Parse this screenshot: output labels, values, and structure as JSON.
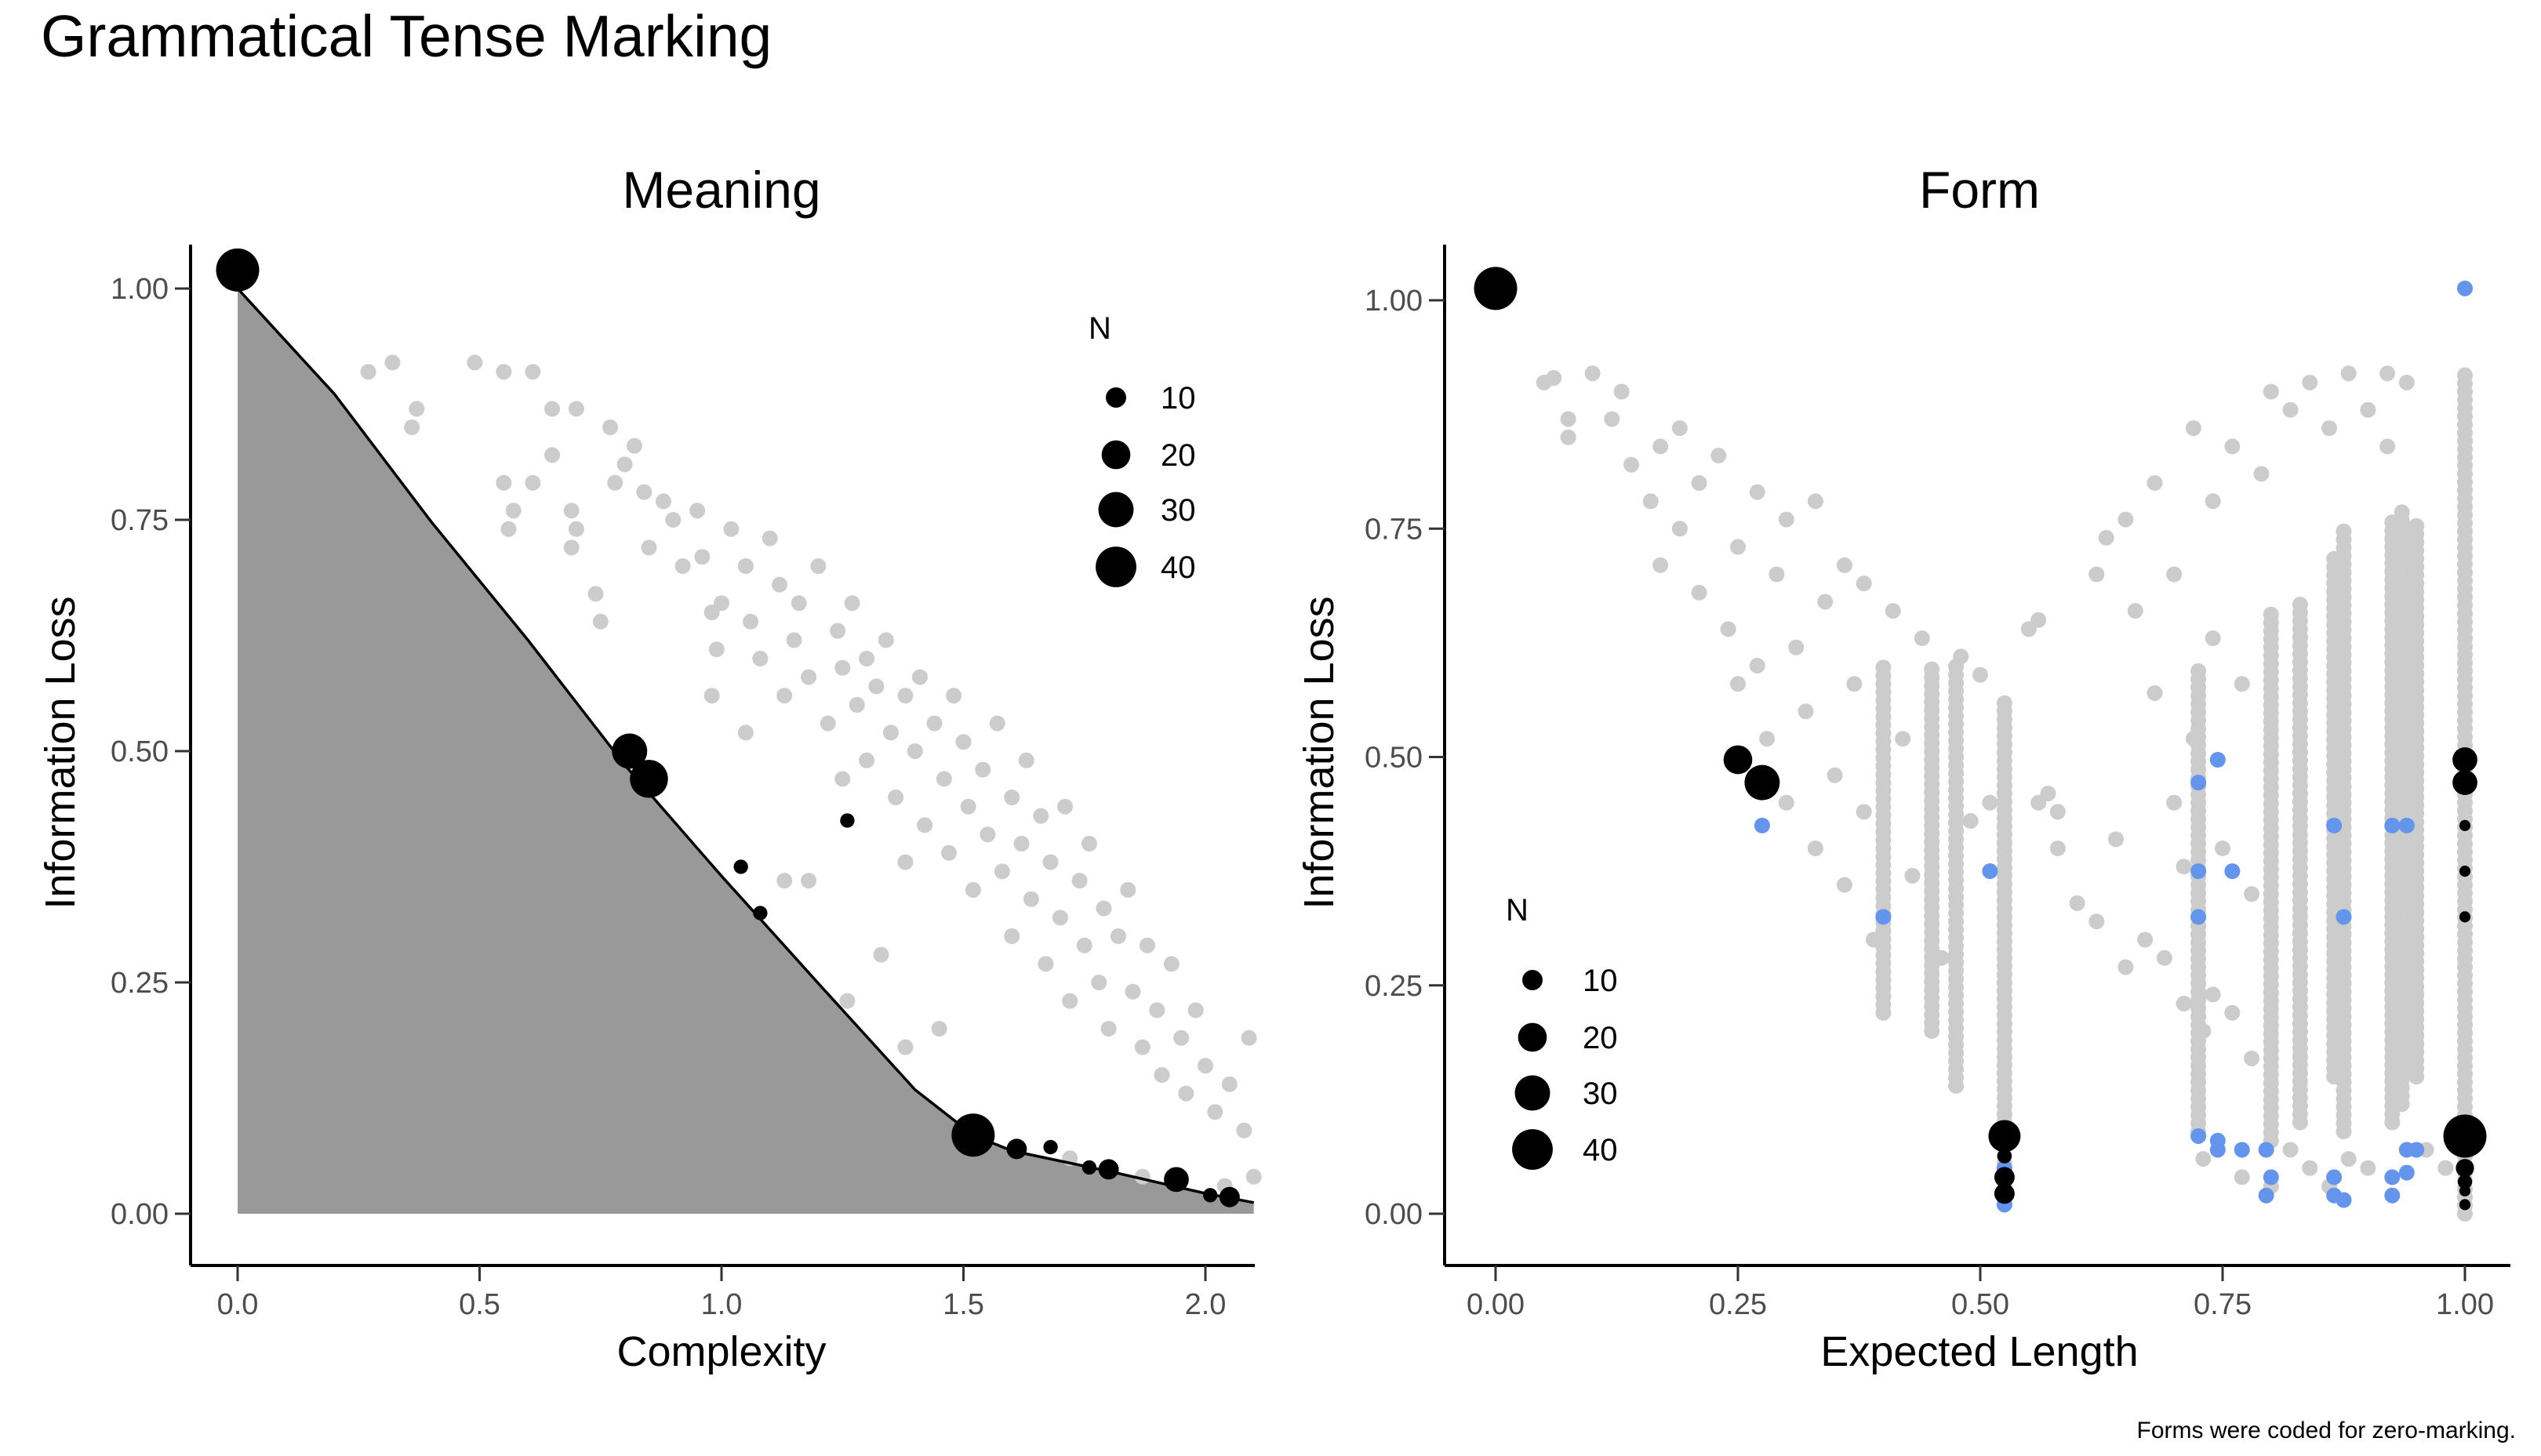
{
  "title": "Grammatical Tense Marking",
  "caption": "Forms were coded for zero-marking.",
  "colors": {
    "other": "#CCCCCC",
    "frontier_fill": "#999999",
    "zero_marked": "#6495ED",
    "attested": "#000000"
  },
  "chart_data": [
    {
      "type": "scatter",
      "title": "Meaning",
      "xlabel": "Complexity",
      "ylabel": "Information Loss",
      "xlim": [
        -0.1,
        2.1
      ],
      "ylim": [
        -0.05,
        1.05
      ],
      "xticks": [
        "0.0",
        "0.5",
        "1.0",
        "1.5",
        "2.0"
      ],
      "xtick_values": [
        0,
        0.5,
        1.0,
        1.5,
        2.0
      ],
      "yticks": [
        "0.00",
        "0.25",
        "0.50",
        "0.75",
        "1.00"
      ],
      "ytick_values": [
        0,
        0.25,
        0.5,
        0.75,
        1.0
      ],
      "legend": {
        "title": "N",
        "entries": [
          "10",
          "20",
          "30",
          "40"
        ],
        "values": [
          10,
          20,
          30,
          40
        ],
        "placement": "top-right"
      },
      "frontier": [
        [
          0,
          1
        ],
        [
          0.2,
          0.886
        ],
        [
          0.4,
          0.748
        ],
        [
          0.6,
          0.62
        ],
        [
          0.8,
          0.485
        ],
        [
          1.0,
          0.365
        ],
        [
          1.2,
          0.249
        ],
        [
          1.4,
          0.134
        ],
        [
          1.52,
          0.085
        ],
        [
          1.6,
          0.068
        ],
        [
          1.8,
          0.046
        ],
        [
          2.0,
          0.022
        ],
        [
          2.1,
          0.012
        ]
      ],
      "gray_points": [
        [
          0.27,
          0.91
        ],
        [
          0.32,
          0.92
        ],
        [
          0.36,
          0.85
        ],
        [
          0.37,
          0.87
        ],
        [
          0.49,
          0.92
        ],
        [
          0.55,
          0.91
        ],
        [
          0.55,
          0.79
        ],
        [
          0.61,
          0.91
        ],
        [
          0.56,
          0.74
        ],
        [
          0.57,
          0.76
        ],
        [
          0.61,
          0.79
        ],
        [
          0.65,
          0.87
        ],
        [
          0.65,
          0.82
        ],
        [
          0.7,
          0.87
        ],
        [
          0.69,
          0.76
        ],
        [
          0.7,
          0.74
        ],
        [
          0.69,
          0.72
        ],
        [
          0.74,
          0.67
        ],
        [
          0.75,
          0.64
        ],
        [
          0.77,
          0.85
        ],
        [
          0.78,
          0.79
        ],
        [
          0.8,
          0.81
        ],
        [
          0.82,
          0.83
        ],
        [
          0.84,
          0.78
        ],
        [
          0.85,
          0.72
        ],
        [
          0.88,
          0.77
        ],
        [
          0.9,
          0.75
        ],
        [
          0.92,
          0.7
        ],
        [
          0.95,
          0.76
        ],
        [
          0.96,
          0.71
        ],
        [
          0.98,
          0.65
        ],
        [
          0.99,
          0.61
        ],
        [
          1.0,
          0.66
        ],
        [
          1.02,
          0.74
        ],
        [
          1.05,
          0.7
        ],
        [
          1.06,
          0.64
        ],
        [
          1.08,
          0.6
        ],
        [
          1.1,
          0.73
        ],
        [
          1.12,
          0.68
        ],
        [
          1.13,
          0.56
        ],
        [
          1.15,
          0.62
        ],
        [
          1.16,
          0.66
        ],
        [
          1.18,
          0.58
        ],
        [
          1.2,
          0.7
        ],
        [
          1.22,
          0.53
        ],
        [
          1.24,
          0.63
        ],
        [
          1.25,
          0.59
        ],
        [
          1.27,
          0.66
        ],
        [
          1.28,
          0.55
        ],
        [
          1.3,
          0.49
        ],
        [
          1.3,
          0.6
        ],
        [
          1.32,
          0.57
        ],
        [
          1.34,
          0.62
        ],
        [
          1.35,
          0.52
        ],
        [
          1.36,
          0.45
        ],
        [
          1.38,
          0.56
        ],
        [
          1.4,
          0.5
        ],
        [
          1.41,
          0.58
        ],
        [
          1.42,
          0.42
        ],
        [
          1.44,
          0.53
        ],
        [
          1.46,
          0.47
        ],
        [
          1.47,
          0.39
        ],
        [
          1.48,
          0.56
        ],
        [
          1.5,
          0.51
        ],
        [
          1.51,
          0.44
        ],
        [
          1.52,
          0.35
        ],
        [
          1.54,
          0.48
        ],
        [
          1.55,
          0.41
        ],
        [
          1.57,
          0.53
        ],
        [
          1.58,
          0.37
        ],
        [
          1.6,
          0.45
        ],
        [
          1.6,
          0.3
        ],
        [
          1.62,
          0.4
        ],
        [
          1.63,
          0.49
        ],
        [
          1.64,
          0.34
        ],
        [
          1.66,
          0.43
        ],
        [
          1.67,
          0.27
        ],
        [
          1.68,
          0.38
        ],
        [
          1.7,
          0.32
        ],
        [
          1.71,
          0.44
        ],
        [
          1.72,
          0.23
        ],
        [
          1.74,
          0.36
        ],
        [
          1.75,
          0.29
        ],
        [
          1.76,
          0.4
        ],
        [
          1.78,
          0.25
        ],
        [
          1.79,
          0.33
        ],
        [
          1.8,
          0.2
        ],
        [
          1.82,
          0.3
        ],
        [
          1.84,
          0.35
        ],
        [
          1.85,
          0.24
        ],
        [
          1.87,
          0.18
        ],
        [
          1.88,
          0.29
        ],
        [
          1.9,
          0.22
        ],
        [
          1.91,
          0.15
        ],
        [
          1.93,
          0.27
        ],
        [
          1.95,
          0.19
        ],
        [
          1.96,
          0.13
        ],
        [
          1.98,
          0.22
        ],
        [
          2.0,
          0.16
        ],
        [
          2.02,
          0.11
        ],
        [
          2.05,
          0.14
        ],
        [
          2.08,
          0.09
        ],
        [
          2.09,
          0.19
        ],
        [
          1.13,
          0.36
        ],
        [
          1.18,
          0.36
        ],
        [
          1.26,
          0.23
        ],
        [
          1.33,
          0.28
        ],
        [
          1.38,
          0.18
        ],
        [
          1.45,
          0.2
        ],
        [
          1.72,
          0.06
        ],
        [
          1.87,
          0.04
        ],
        [
          2.04,
          0.03
        ],
        [
          2.1,
          0.04
        ],
        [
          1.25,
          0.47
        ],
        [
          1.05,
          0.52
        ],
        [
          0.98,
          0.56
        ],
        [
          1.38,
          0.38
        ]
      ],
      "black_points": [
        [
          0,
          1.02,
          45
        ],
        [
          0.81,
          0.5,
          30
        ],
        [
          0.85,
          0.47,
          35
        ],
        [
          1.04,
          0.375,
          5
        ],
        [
          1.08,
          0.325,
          5
        ],
        [
          1.26,
          0.425,
          5
        ],
        [
          1.52,
          0.085,
          45
        ],
        [
          1.61,
          0.07,
          10
        ],
        [
          1.68,
          0.072,
          5
        ],
        [
          1.76,
          0.05,
          5
        ],
        [
          1.8,
          0.048,
          10
        ],
        [
          1.94,
          0.037,
          15
        ],
        [
          2.01,
          0.02,
          5
        ],
        [
          2.05,
          0.018,
          10
        ]
      ]
    },
    {
      "type": "scatter",
      "title": "Form",
      "xlabel": "Expected Length",
      "ylabel": "Information Loss",
      "xlim": [
        -0.05,
        1.05
      ],
      "ylim": [
        -0.05,
        1.063
      ],
      "xticks": [
        "0.00",
        "0.25",
        "0.50",
        "0.75",
        "1.00"
      ],
      "xtick_values": [
        0,
        0.25,
        0.5,
        0.75,
        1.0
      ],
      "yticks": [
        "0.00",
        "0.25",
        "0.50",
        "0.75",
        "1.00"
      ],
      "ytick_values": [
        0,
        0.25,
        0.5,
        0.75,
        1.0
      ],
      "legend": {
        "title": "N",
        "entries": [
          "10",
          "20",
          "30",
          "40"
        ],
        "values": [
          10,
          20,
          30,
          40
        ],
        "placement": "bottom-left"
      },
      "gray_columns": [
        [
          0.4,
          0.22,
          0.6
        ],
        [
          0.45,
          0.2,
          0.6
        ],
        [
          0.475,
          0.14,
          0.6
        ],
        [
          0.525,
          0.01,
          0.56
        ],
        [
          0.725,
          0.09,
          0.6
        ],
        [
          0.8,
          0.08,
          0.66
        ],
        [
          0.83,
          0.1,
          0.67
        ],
        [
          0.865,
          0.15,
          0.72
        ],
        [
          0.875,
          0.09,
          0.75
        ],
        [
          0.925,
          0.1,
          0.76
        ],
        [
          0.935,
          0.12,
          0.77
        ],
        [
          0.95,
          0.15,
          0.76
        ],
        [
          1.0,
          0.0,
          0.92
        ]
      ],
      "gray_points": [
        [
          0.05,
          0.91
        ],
        [
          0.06,
          0.915
        ],
        [
          0.075,
          0.87
        ],
        [
          0.075,
          0.85
        ],
        [
          0.1,
          0.92
        ],
        [
          0.12,
          0.87
        ],
        [
          0.13,
          0.9
        ],
        [
          0.14,
          0.82
        ],
        [
          0.16,
          0.78
        ],
        [
          0.17,
          0.84
        ],
        [
          0.17,
          0.71
        ],
        [
          0.19,
          0.86
        ],
        [
          0.19,
          0.75
        ],
        [
          0.21,
          0.8
        ],
        [
          0.21,
          0.68
        ],
        [
          0.23,
          0.83
        ],
        [
          0.24,
          0.64
        ],
        [
          0.25,
          0.73
        ],
        [
          0.25,
          0.58
        ],
        [
          0.27,
          0.79
        ],
        [
          0.27,
          0.6
        ],
        [
          0.28,
          0.52
        ],
        [
          0.29,
          0.7
        ],
        [
          0.3,
          0.76
        ],
        [
          0.3,
          0.45
        ],
        [
          0.31,
          0.62
        ],
        [
          0.32,
          0.55
        ],
        [
          0.33,
          0.78
        ],
        [
          0.33,
          0.4
        ],
        [
          0.34,
          0.67
        ],
        [
          0.35,
          0.48
        ],
        [
          0.36,
          0.71
        ],
        [
          0.36,
          0.36
        ],
        [
          0.37,
          0.58
        ],
        [
          0.38,
          0.69
        ],
        [
          0.38,
          0.44
        ],
        [
          0.39,
          0.3
        ],
        [
          0.41,
          0.66
        ],
        [
          0.42,
          0.52
        ],
        [
          0.43,
          0.37
        ],
        [
          0.44,
          0.63
        ],
        [
          0.46,
          0.28
        ],
        [
          0.48,
          0.61
        ],
        [
          0.49,
          0.43
        ],
        [
          0.5,
          0.59
        ],
        [
          0.51,
          0.45
        ],
        [
          0.55,
          0.64
        ],
        [
          0.56,
          0.65
        ],
        [
          0.56,
          0.45
        ],
        [
          0.57,
          0.46
        ],
        [
          0.58,
          0.44
        ],
        [
          0.58,
          0.4
        ],
        [
          0.62,
          0.7
        ],
        [
          0.63,
          0.74
        ],
        [
          0.65,
          0.76
        ],
        [
          0.66,
          0.66
        ],
        [
          0.68,
          0.8
        ],
        [
          0.68,
          0.57
        ],
        [
          0.7,
          0.7
        ],
        [
          0.7,
          0.45
        ],
        [
          0.72,
          0.86
        ],
        [
          0.72,
          0.52
        ],
        [
          0.74,
          0.78
        ],
        [
          0.74,
          0.63
        ],
        [
          0.75,
          0.4
        ],
        [
          0.76,
          0.84
        ],
        [
          0.77,
          0.58
        ],
        [
          0.78,
          0.35
        ],
        [
          0.79,
          0.81
        ],
        [
          0.8,
          0.9
        ],
        [
          0.82,
          0.88
        ],
        [
          0.84,
          0.91
        ],
        [
          0.86,
          0.86
        ],
        [
          0.88,
          0.92
        ],
        [
          0.9,
          0.88
        ],
        [
          0.92,
          0.92
        ],
        [
          0.92,
          0.84
        ],
        [
          0.94,
          0.91
        ],
        [
          0.6,
          0.34
        ],
        [
          0.62,
          0.32
        ],
        [
          0.64,
          0.41
        ],
        [
          0.65,
          0.27
        ],
        [
          0.67,
          0.3
        ],
        [
          0.69,
          0.28
        ],
        [
          0.71,
          0.38
        ],
        [
          0.71,
          0.23
        ],
        [
          0.73,
          0.2
        ],
        [
          0.74,
          0.24
        ],
        [
          0.76,
          0.22
        ],
        [
          0.78,
          0.17
        ],
        [
          0.82,
          0.07
        ],
        [
          0.84,
          0.05
        ],
        [
          0.86,
          0.03
        ],
        [
          0.88,
          0.06
        ],
        [
          0.9,
          0.05
        ],
        [
          0.96,
          0.07
        ],
        [
          0.98,
          0.05
        ],
        [
          0.73,
          0.06
        ],
        [
          0.77,
          0.04
        ],
        [
          0.8,
          0.03
        ]
      ],
      "blue_points": [
        [
          1.0,
          1.013
        ],
        [
          0.275,
          0.425
        ],
        [
          0.51,
          0.375
        ],
        [
          0.4,
          0.325
        ],
        [
          0.725,
          0.472
        ],
        [
          0.745,
          0.497
        ],
        [
          0.725,
          0.375
        ],
        [
          0.76,
          0.375
        ],
        [
          0.725,
          0.325
        ],
        [
          0.865,
          0.425
        ],
        [
          0.875,
          0.325
        ],
        [
          0.925,
          0.425
        ],
        [
          0.94,
          0.425
        ],
        [
          0.725,
          0.085
        ],
        [
          0.745,
          0.08
        ],
        [
          0.745,
          0.07
        ],
        [
          0.77,
          0.07
        ],
        [
          0.795,
          0.07
        ],
        [
          0.8,
          0.04
        ],
        [
          0.795,
          0.02
        ],
        [
          0.865,
          0.04
        ],
        [
          0.865,
          0.02
        ],
        [
          0.875,
          0.015
        ],
        [
          0.925,
          0.04
        ],
        [
          0.925,
          0.02
        ],
        [
          0.94,
          0.07
        ],
        [
          0.95,
          0.07
        ],
        [
          0.94,
          0.045
        ],
        [
          0.525,
          0.01
        ],
        [
          0.525,
          0.05
        ]
      ],
      "black_points": [
        [
          0,
          1.013,
          45
        ],
        [
          0.25,
          0.497,
          20
        ],
        [
          0.275,
          0.472,
          30
        ],
        [
          0.525,
          0.085,
          25
        ],
        [
          0.525,
          0.063,
          5
        ],
        [
          0.525,
          0.04,
          10
        ],
        [
          0.525,
          0.022,
          10
        ],
        [
          1.0,
          0.497,
          15
        ],
        [
          1.0,
          0.472,
          15
        ],
        [
          1.0,
          0.425,
          3
        ],
        [
          1.0,
          0.375,
          3
        ],
        [
          1.0,
          0.325,
          3
        ],
        [
          1.0,
          0.085,
          45
        ],
        [
          1.0,
          0.05,
          8
        ],
        [
          1.0,
          0.035,
          5
        ],
        [
          1.0,
          0.025,
          3
        ],
        [
          1.0,
          0.01,
          3
        ]
      ]
    }
  ]
}
